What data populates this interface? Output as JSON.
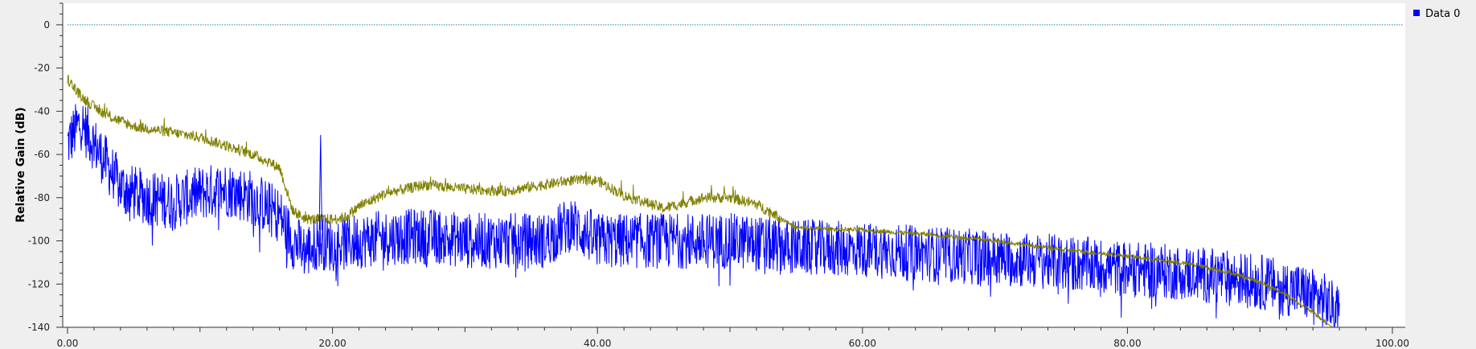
{
  "chart_data": {
    "type": "line",
    "title": "",
    "xlabel": "",
    "ylabel": "Relative Gain (dB)",
    "xlim": [
      0,
      100
    ],
    "ylim": [
      -140,
      10
    ],
    "x_ticks": [
      "0.00",
      "20.00",
      "40.00",
      "60.00",
      "80.00",
      "100.00"
    ],
    "x_tick_values": [
      0,
      20,
      40,
      60,
      80,
      100
    ],
    "y_ticks": [
      "0",
      "-20",
      "-40",
      "-60",
      "-80",
      "-100",
      "-120",
      "-140"
    ],
    "y_tick_values": [
      0,
      -20,
      -40,
      -60,
      -80,
      -100,
      -120,
      -140
    ],
    "grid": false,
    "legend_position": "top-right",
    "reference_line": {
      "y": 0,
      "color": "#1a8a9a",
      "style": "dotted"
    },
    "series": [
      {
        "name": "Data 0",
        "color": "#0000ff",
        "in_legend": true,
        "x": [
          0,
          1,
          2,
          3,
          4,
          5,
          6,
          8,
          10,
          12,
          14,
          16,
          17,
          18,
          19,
          20,
          22,
          25,
          28,
          30,
          33,
          36,
          38,
          40,
          45,
          50,
          55,
          60,
          65,
          70,
          75,
          80,
          85,
          90,
          93,
          95,
          96
        ],
        "values": [
          -55,
          -45,
          -55,
          -65,
          -75,
          -78,
          -80,
          -82,
          -78,
          -76,
          -80,
          -88,
          -100,
          -105,
          -100,
          -102,
          -100,
          -98,
          -98,
          -100,
          -100,
          -100,
          -92,
          -100,
          -100,
          -100,
          -103,
          -104,
          -106,
          -108,
          -110,
          -113,
          -115,
          -119,
          -123,
          -128,
          -135
        ]
      },
      {
        "color": "#808000",
        "in_legend": false,
        "x": [
          0,
          1,
          2,
          3,
          5,
          8,
          10,
          12,
          14,
          16,
          17,
          18,
          19,
          20,
          21,
          22,
          24,
          27,
          30,
          33,
          35,
          38,
          40,
          42,
          45,
          48,
          50,
          52,
          54,
          55,
          60,
          65,
          70,
          75,
          80,
          85,
          88,
          90,
          92,
          94,
          95,
          95.5,
          96,
          100
        ],
        "values": [
          -25,
          -33,
          -38,
          -42,
          -47,
          -50,
          -52,
          -56,
          -60,
          -66,
          -86,
          -90,
          -90,
          -90,
          -89,
          -84,
          -78,
          -74,
          -76,
          -77,
          -75,
          -72,
          -72,
          -79,
          -85,
          -80,
          -80,
          -83,
          -90,
          -94,
          -95,
          -97,
          -100,
          -104,
          -107,
          -111,
          -115,
          -119,
          -125,
          -133,
          -138,
          -140,
          -140,
          -140
        ]
      }
    ]
  }
}
